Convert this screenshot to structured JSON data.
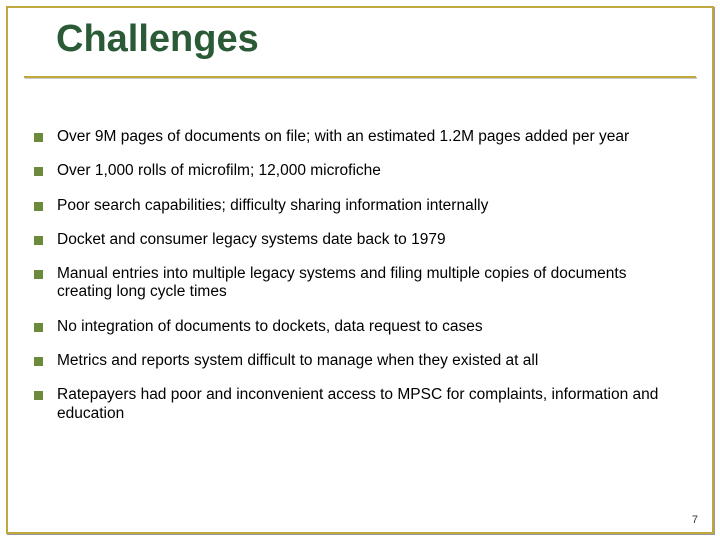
{
  "title": "Challenges",
  "bullets": [
    "Over 9M pages of documents on file; with an estimated 1.2M pages added per year",
    "Over 1,000 rolls of microfilm; 12,000 microfiche",
    "Poor search capabilities; difficulty sharing information internally",
    "Docket and consumer legacy systems date back to 1979",
    "Manual entries into multiple legacy systems and filing multiple copies of documents creating long cycle times",
    "No integration of documents to dockets, data request to cases",
    "Metrics and reports system difficult to manage when they existed at all",
    "Ratepayers had poor and inconvenient access to MPSC for complaints, information and education"
  ],
  "pageNumber": "7",
  "colors": {
    "title": "#2a5a36",
    "accent": "#bfa93f",
    "bullet": "#6b8a3a",
    "background": "#ffffff"
  },
  "typography": {
    "title_fontsize": 38,
    "body_fontsize": 15.5,
    "pagenum_fontsize": 11
  }
}
